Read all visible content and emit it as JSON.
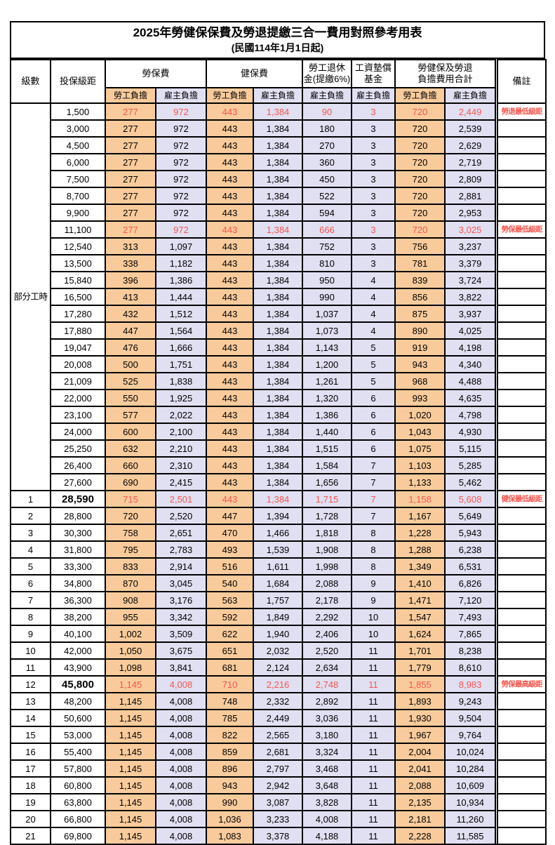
{
  "title": "2025年勞健保保費及勞退提繳三合一費用對照參考用表",
  "subtitle": "(民國114年1月1日起)",
  "header": {
    "level": "級數",
    "bracket": "投保級距",
    "labor_fee": "勞保費",
    "health_fee": "健保費",
    "pension_line1": "勞工退休",
    "pension_line2": "金(提繳6%)",
    "wage_fund_line1": "工資墊償",
    "wage_fund_line2": "基金",
    "total_line1": "勞健保及勞退",
    "total_line2": "負擔費用合計",
    "note": "備註",
    "employee_label": "勞工負擔",
    "employer_label": "雇主負擔"
  },
  "colors": {
    "employee_bg": "#F9CB9C",
    "employer_bg": "#E1DFF2",
    "highlight_text": "#F5564E",
    "border": "#000000"
  },
  "table": {
    "part_time_label": "部分工時",
    "part_time_rowspan": 23,
    "cell_styles": [
      "e",
      "r",
      "e",
      "r",
      "r",
      "r",
      "e",
      "r"
    ],
    "rows": [
      {
        "level": "",
        "bracket": "1,500",
        "cells": [
          "277",
          "972",
          "443",
          "1,384",
          "90",
          "3",
          "720",
          "2,449"
        ],
        "note": "勞退最低級距",
        "hl": true,
        "bracket_bold": false
      },
      {
        "level": "",
        "bracket": "3,000",
        "cells": [
          "277",
          "972",
          "443",
          "1,384",
          "180",
          "3",
          "720",
          "2,539"
        ],
        "note": "",
        "hl": false,
        "bracket_bold": false
      },
      {
        "level": "",
        "bracket": "4,500",
        "cells": [
          "277",
          "972",
          "443",
          "1,384",
          "270",
          "3",
          "720",
          "2,629"
        ],
        "note": "",
        "hl": false,
        "bracket_bold": false
      },
      {
        "level": "",
        "bracket": "6,000",
        "cells": [
          "277",
          "972",
          "443",
          "1,384",
          "360",
          "3",
          "720",
          "2,719"
        ],
        "note": "",
        "hl": false,
        "bracket_bold": false
      },
      {
        "level": "",
        "bracket": "7,500",
        "cells": [
          "277",
          "972",
          "443",
          "1,384",
          "450",
          "3",
          "720",
          "2,809"
        ],
        "note": "",
        "hl": false,
        "bracket_bold": false
      },
      {
        "level": "",
        "bracket": "8,700",
        "cells": [
          "277",
          "972",
          "443",
          "1,384",
          "522",
          "3",
          "720",
          "2,881"
        ],
        "note": "",
        "hl": false,
        "bracket_bold": false
      },
      {
        "level": "",
        "bracket": "9,900",
        "cells": [
          "277",
          "972",
          "443",
          "1,384",
          "594",
          "3",
          "720",
          "2,953"
        ],
        "note": "",
        "hl": false,
        "bracket_bold": false
      },
      {
        "level": "",
        "bracket": "11,100",
        "cells": [
          "277",
          "972",
          "443",
          "1,384",
          "666",
          "3",
          "720",
          "3,025"
        ],
        "note": "勞保最低級距",
        "hl": true,
        "bracket_bold": false
      },
      {
        "level": "",
        "bracket": "12,540",
        "cells": [
          "313",
          "1,097",
          "443",
          "1,384",
          "752",
          "3",
          "756",
          "3,237"
        ],
        "note": "",
        "hl": false,
        "bracket_bold": false
      },
      {
        "level": "",
        "bracket": "13,500",
        "cells": [
          "338",
          "1,182",
          "443",
          "1,384",
          "810",
          "3",
          "781",
          "3,379"
        ],
        "note": "",
        "hl": false,
        "bracket_bold": false
      },
      {
        "level": "",
        "bracket": "15,840",
        "cells": [
          "396",
          "1,386",
          "443",
          "1,384",
          "950",
          "4",
          "839",
          "3,724"
        ],
        "note": "",
        "hl": false,
        "bracket_bold": false
      },
      {
        "level": "",
        "bracket": "16,500",
        "cells": [
          "413",
          "1,444",
          "443",
          "1,384",
          "990",
          "4",
          "856",
          "3,822"
        ],
        "note": "",
        "hl": false,
        "bracket_bold": false
      },
      {
        "level": "",
        "bracket": "17,280",
        "cells": [
          "432",
          "1,512",
          "443",
          "1,384",
          "1,037",
          "4",
          "875",
          "3,937"
        ],
        "note": "",
        "hl": false,
        "bracket_bold": false
      },
      {
        "level": "",
        "bracket": "17,880",
        "cells": [
          "447",
          "1,564",
          "443",
          "1,384",
          "1,073",
          "4",
          "890",
          "4,025"
        ],
        "note": "",
        "hl": false,
        "bracket_bold": false
      },
      {
        "level": "",
        "bracket": "19,047",
        "cells": [
          "476",
          "1,666",
          "443",
          "1,384",
          "1,143",
          "5",
          "919",
          "4,198"
        ],
        "note": "",
        "hl": false,
        "bracket_bold": false
      },
      {
        "level": "",
        "bracket": "20,008",
        "cells": [
          "500",
          "1,751",
          "443",
          "1,384",
          "1,200",
          "5",
          "943",
          "4,340"
        ],
        "note": "",
        "hl": false,
        "bracket_bold": false
      },
      {
        "level": "",
        "bracket": "21,009",
        "cells": [
          "525",
          "1,838",
          "443",
          "1,384",
          "1,261",
          "5",
          "968",
          "4,488"
        ],
        "note": "",
        "hl": false,
        "bracket_bold": false
      },
      {
        "level": "",
        "bracket": "22,000",
        "cells": [
          "550",
          "1,925",
          "443",
          "1,384",
          "1,320",
          "6",
          "993",
          "4,635"
        ],
        "note": "",
        "hl": false,
        "bracket_bold": false
      },
      {
        "level": "",
        "bracket": "23,100",
        "cells": [
          "577",
          "2,022",
          "443",
          "1,384",
          "1,386",
          "6",
          "1,020",
          "4,798"
        ],
        "note": "",
        "hl": false,
        "bracket_bold": false
      },
      {
        "level": "",
        "bracket": "24,000",
        "cells": [
          "600",
          "2,100",
          "443",
          "1,384",
          "1,440",
          "6",
          "1,043",
          "4,930"
        ],
        "note": "",
        "hl": false,
        "bracket_bold": false
      },
      {
        "level": "",
        "bracket": "25,250",
        "cells": [
          "632",
          "2,210",
          "443",
          "1,384",
          "1,515",
          "6",
          "1,075",
          "5,115"
        ],
        "note": "",
        "hl": false,
        "bracket_bold": false
      },
      {
        "level": "",
        "bracket": "26,400",
        "cells": [
          "660",
          "2,310",
          "443",
          "1,384",
          "1,584",
          "7",
          "1,103",
          "5,285"
        ],
        "note": "",
        "hl": false,
        "bracket_bold": false
      },
      {
        "level": "",
        "bracket": "27,600",
        "cells": [
          "690",
          "2,415",
          "443",
          "1,384",
          "1,656",
          "7",
          "1,133",
          "5,462"
        ],
        "note": "",
        "hl": false,
        "bracket_bold": false
      },
      {
        "level": "1",
        "bracket": "28,590",
        "cells": [
          "715",
          "2,501",
          "443",
          "1,384",
          "1,715",
          "7",
          "1,158",
          "5,608"
        ],
        "note": "健保最低級距",
        "hl": true,
        "bracket_bold": true
      },
      {
        "level": "2",
        "bracket": "28,800",
        "cells": [
          "720",
          "2,520",
          "447",
          "1,394",
          "1,728",
          "7",
          "1,167",
          "5,649"
        ],
        "note": "",
        "hl": false,
        "bracket_bold": false
      },
      {
        "level": "3",
        "bracket": "30,300",
        "cells": [
          "758",
          "2,651",
          "470",
          "1,466",
          "1,818",
          "8",
          "1,228",
          "5,943"
        ],
        "note": "",
        "hl": false,
        "bracket_bold": false
      },
      {
        "level": "4",
        "bracket": "31,800",
        "cells": [
          "795",
          "2,783",
          "493",
          "1,539",
          "1,908",
          "8",
          "1,288",
          "6,238"
        ],
        "note": "",
        "hl": false,
        "bracket_bold": false
      },
      {
        "level": "5",
        "bracket": "33,300",
        "cells": [
          "833",
          "2,914",
          "516",
          "1,611",
          "1,998",
          "8",
          "1,349",
          "6,531"
        ],
        "note": "",
        "hl": false,
        "bracket_bold": false
      },
      {
        "level": "6",
        "bracket": "34,800",
        "cells": [
          "870",
          "3,045",
          "540",
          "1,684",
          "2,088",
          "9",
          "1,410",
          "6,826"
        ],
        "note": "",
        "hl": false,
        "bracket_bold": false
      },
      {
        "level": "7",
        "bracket": "36,300",
        "cells": [
          "908",
          "3,176",
          "563",
          "1,757",
          "2,178",
          "9",
          "1,471",
          "7,120"
        ],
        "note": "",
        "hl": false,
        "bracket_bold": false
      },
      {
        "level": "8",
        "bracket": "38,200",
        "cells": [
          "955",
          "3,342",
          "592",
          "1,849",
          "2,292",
          "10",
          "1,547",
          "7,493"
        ],
        "note": "",
        "hl": false,
        "bracket_bold": false
      },
      {
        "level": "9",
        "bracket": "40,100",
        "cells": [
          "1,002",
          "3,509",
          "622",
          "1,940",
          "2,406",
          "10",
          "1,624",
          "7,865"
        ],
        "note": "",
        "hl": false,
        "bracket_bold": false
      },
      {
        "level": "10",
        "bracket": "42,000",
        "cells": [
          "1,050",
          "3,675",
          "651",
          "2,032",
          "2,520",
          "11",
          "1,701",
          "8,238"
        ],
        "note": "",
        "hl": false,
        "bracket_bold": false
      },
      {
        "level": "11",
        "bracket": "43,900",
        "cells": [
          "1,098",
          "3,841",
          "681",
          "2,124",
          "2,634",
          "11",
          "1,779",
          "8,610"
        ],
        "note": "",
        "hl": false,
        "bracket_bold": false
      },
      {
        "level": "12",
        "bracket": "45,800",
        "cells": [
          "1,145",
          "4,008",
          "710",
          "2,216",
          "2,748",
          "11",
          "1,855",
          "8,983"
        ],
        "note": "勞保最高級距",
        "hl": true,
        "bracket_bold": true
      },
      {
        "level": "13",
        "bracket": "48,200",
        "cells": [
          "1,145",
          "4,008",
          "748",
          "2,332",
          "2,892",
          "11",
          "1,893",
          "9,243"
        ],
        "note": "",
        "hl": false,
        "bracket_bold": false
      },
      {
        "level": "14",
        "bracket": "50,600",
        "cells": [
          "1,145",
          "4,008",
          "785",
          "2,449",
          "3,036",
          "11",
          "1,930",
          "9,504"
        ],
        "note": "",
        "hl": false,
        "bracket_bold": false
      },
      {
        "level": "15",
        "bracket": "53,000",
        "cells": [
          "1,145",
          "4,008",
          "822",
          "2,565",
          "3,180",
          "11",
          "1,967",
          "9,764"
        ],
        "note": "",
        "hl": false,
        "bracket_bold": false
      },
      {
        "level": "16",
        "bracket": "55,400",
        "cells": [
          "1,145",
          "4,008",
          "859",
          "2,681",
          "3,324",
          "11",
          "2,004",
          "10,024"
        ],
        "note": "",
        "hl": false,
        "bracket_bold": false
      },
      {
        "level": "17",
        "bracket": "57,800",
        "cells": [
          "1,145",
          "4,008",
          "896",
          "2,797",
          "3,468",
          "11",
          "2,041",
          "10,284"
        ],
        "note": "",
        "hl": false,
        "bracket_bold": false
      },
      {
        "level": "18",
        "bracket": "60,800",
        "cells": [
          "1,145",
          "4,008",
          "943",
          "2,942",
          "3,648",
          "11",
          "2,088",
          "10,609"
        ],
        "note": "",
        "hl": false,
        "bracket_bold": false
      },
      {
        "level": "19",
        "bracket": "63,800",
        "cells": [
          "1,145",
          "4,008",
          "990",
          "3,087",
          "3,828",
          "11",
          "2,135",
          "10,934"
        ],
        "note": "",
        "hl": false,
        "bracket_bold": false
      },
      {
        "level": "20",
        "bracket": "66,800",
        "cells": [
          "1,145",
          "4,008",
          "1,036",
          "3,233",
          "4,008",
          "11",
          "2,181",
          "11,260"
        ],
        "note": "",
        "hl": false,
        "bracket_bold": false
      },
      {
        "level": "21",
        "bracket": "69,800",
        "cells": [
          "1,145",
          "4,008",
          "1,083",
          "3,378",
          "4,188",
          "11",
          "2,228",
          "11,585"
        ],
        "note": "",
        "hl": false,
        "bracket_bold": false
      }
    ]
  }
}
